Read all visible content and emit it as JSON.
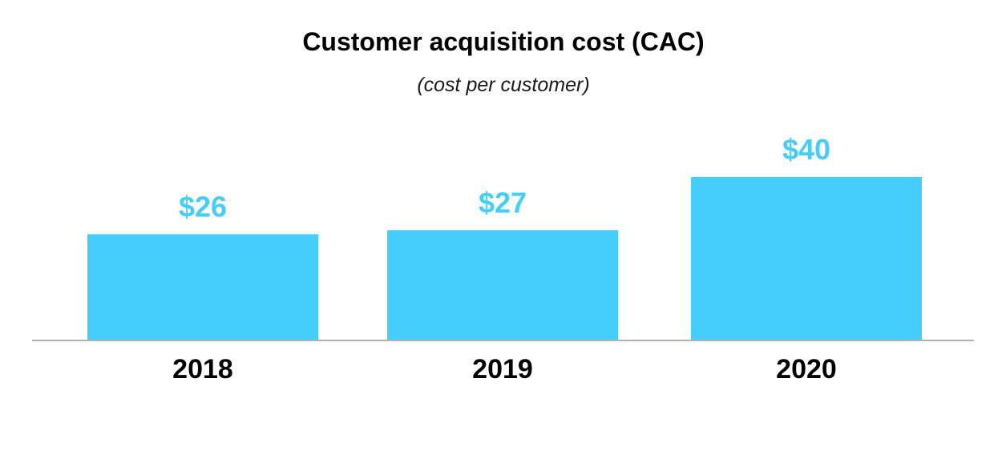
{
  "chart_data": {
    "type": "bar",
    "title": "Customer acquisition cost (CAC)",
    "subtitle": "(cost per customer)",
    "xlabel": "",
    "ylabel": "",
    "categories": [
      "2018",
      "2019",
      "2020"
    ],
    "values": [
      26,
      27,
      40
    ],
    "value_labels": [
      "$26",
      "$27",
      "$40"
    ],
    "ylim": [
      0,
      40
    ],
    "grid": false,
    "legend": "none",
    "colors": {
      "bar": "#45cefc",
      "value_label": "#45cefc",
      "axis": "#b3b3b3"
    }
  }
}
